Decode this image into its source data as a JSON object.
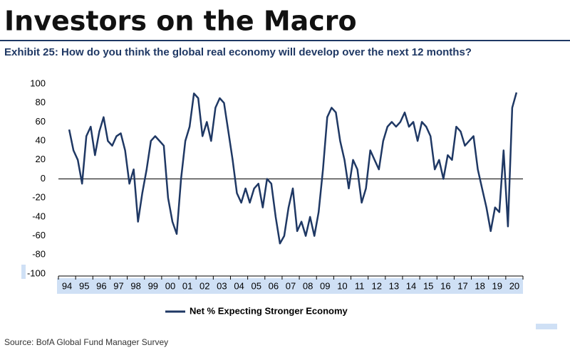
{
  "title": "Investors on the Macro",
  "chart_data": {
    "type": "line",
    "title": "Exhibit 25: How do you think the global real economy will develop over the next 12 months?",
    "source": "Source: BofA Global Fund Manager Survey",
    "categories": [
      "94",
      null,
      null,
      null,
      "95",
      null,
      null,
      null,
      "96",
      null,
      null,
      null,
      "97",
      null,
      null,
      null,
      "98",
      null,
      null,
      null,
      "99",
      null,
      null,
      null,
      "00",
      null,
      null,
      null,
      "01",
      null,
      null,
      null,
      "02",
      null,
      null,
      null,
      "03",
      null,
      null,
      null,
      "04",
      null,
      null,
      null,
      "05",
      null,
      null,
      null,
      "06",
      null,
      null,
      null,
      "07",
      null,
      null,
      null,
      "08",
      null,
      null,
      null,
      "09",
      null,
      null,
      null,
      "10",
      null,
      null,
      null,
      "11",
      null,
      null,
      null,
      "12",
      null,
      null,
      null,
      "13",
      null,
      null,
      null,
      "14",
      null,
      null,
      null,
      "15",
      null,
      null,
      null,
      "16",
      null,
      null,
      null,
      "17",
      null,
      null,
      null,
      "18",
      null,
      null,
      null,
      "19",
      null,
      null,
      null,
      "20",
      null,
      null,
      null
    ],
    "series": [
      {
        "name": "Net % Expecting Stronger Economy",
        "color": "#1f3864",
        "values": [
          null,
          null,
          52,
          30,
          20,
          -5,
          45,
          55,
          25,
          50,
          65,
          40,
          35,
          45,
          48,
          30,
          -5,
          10,
          -45,
          -15,
          10,
          40,
          45,
          40,
          35,
          -20,
          -45,
          -58,
          0,
          40,
          55,
          90,
          85,
          45,
          60,
          40,
          75,
          85,
          80,
          50,
          20,
          -15,
          -25,
          -10,
          -25,
          -10,
          -5,
          -30,
          0,
          -5,
          -40,
          -68,
          -60,
          -30,
          -10,
          -55,
          -45,
          -60,
          -40,
          -60,
          -35,
          10,
          65,
          75,
          70,
          40,
          20,
          -10,
          20,
          10,
          -25,
          -10,
          30,
          20,
          10,
          40,
          55,
          60,
          55,
          60,
          70,
          55,
          60,
          40,
          60,
          55,
          45,
          10,
          20,
          0,
          25,
          20,
          55,
          50,
          35,
          40,
          45,
          10,
          -10,
          -30,
          -55,
          -30,
          -35,
          30,
          -50,
          75,
          91,
          null
        ]
      }
    ],
    "ylim": [
      -100,
      100
    ],
    "yticks": [
      -100,
      -80,
      -60,
      -40,
      -20,
      0,
      20,
      40,
      60,
      80,
      100
    ],
    "grid": false
  }
}
